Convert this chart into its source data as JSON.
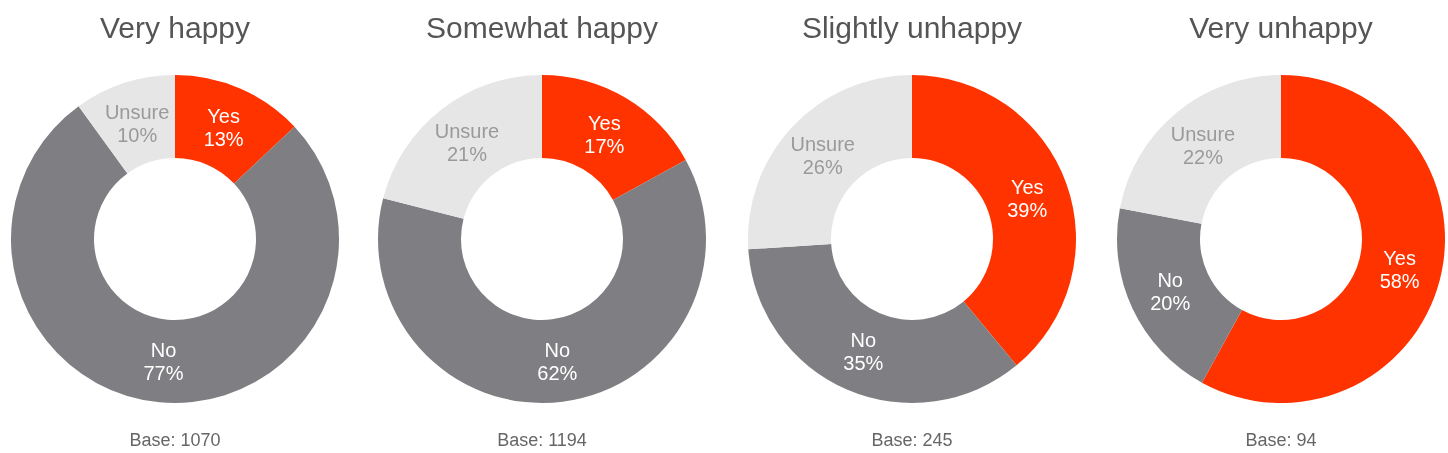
{
  "chart_data": [
    {
      "type": "donut",
      "title": "Very happy",
      "categories": [
        "Yes",
        "No",
        "Unsure"
      ],
      "values": [
        13,
        77,
        10
      ],
      "colors": [
        "#ff3300",
        "#7f7f83",
        "#e6e6e6"
      ],
      "value_labels": [
        "13%",
        "77%",
        "10%"
      ],
      "annotations": [
        "Base: 1070"
      ]
    },
    {
      "type": "donut",
      "title": "Somewhat happy",
      "categories": [
        "Yes",
        "No",
        "Unsure"
      ],
      "values": [
        17,
        62,
        21
      ],
      "colors": [
        "#ff3300",
        "#7f7f83",
        "#e6e6e6"
      ],
      "value_labels": [
        "17%",
        "62%",
        "21%"
      ],
      "annotations": [
        "Base: 1194"
      ]
    },
    {
      "type": "donut",
      "title": "Slightly unhappy",
      "categories": [
        "Yes",
        "No",
        "Unsure"
      ],
      "values": [
        39,
        35,
        26
      ],
      "colors": [
        "#ff3300",
        "#7f7f83",
        "#e6e6e6"
      ],
      "value_labels": [
        "39%",
        "35%",
        "26%"
      ],
      "annotations": [
        "Base: 245"
      ]
    },
    {
      "type": "donut",
      "title": "Very unhappy",
      "categories": [
        "Yes",
        "No",
        "Unsure"
      ],
      "values": [
        58,
        20,
        22
      ],
      "colors": [
        "#ff3300",
        "#7f7f83",
        "#e6e6e6"
      ],
      "value_labels": [
        "58%",
        "20%",
        "22%"
      ],
      "annotations": [
        "Base: 94"
      ]
    }
  ]
}
